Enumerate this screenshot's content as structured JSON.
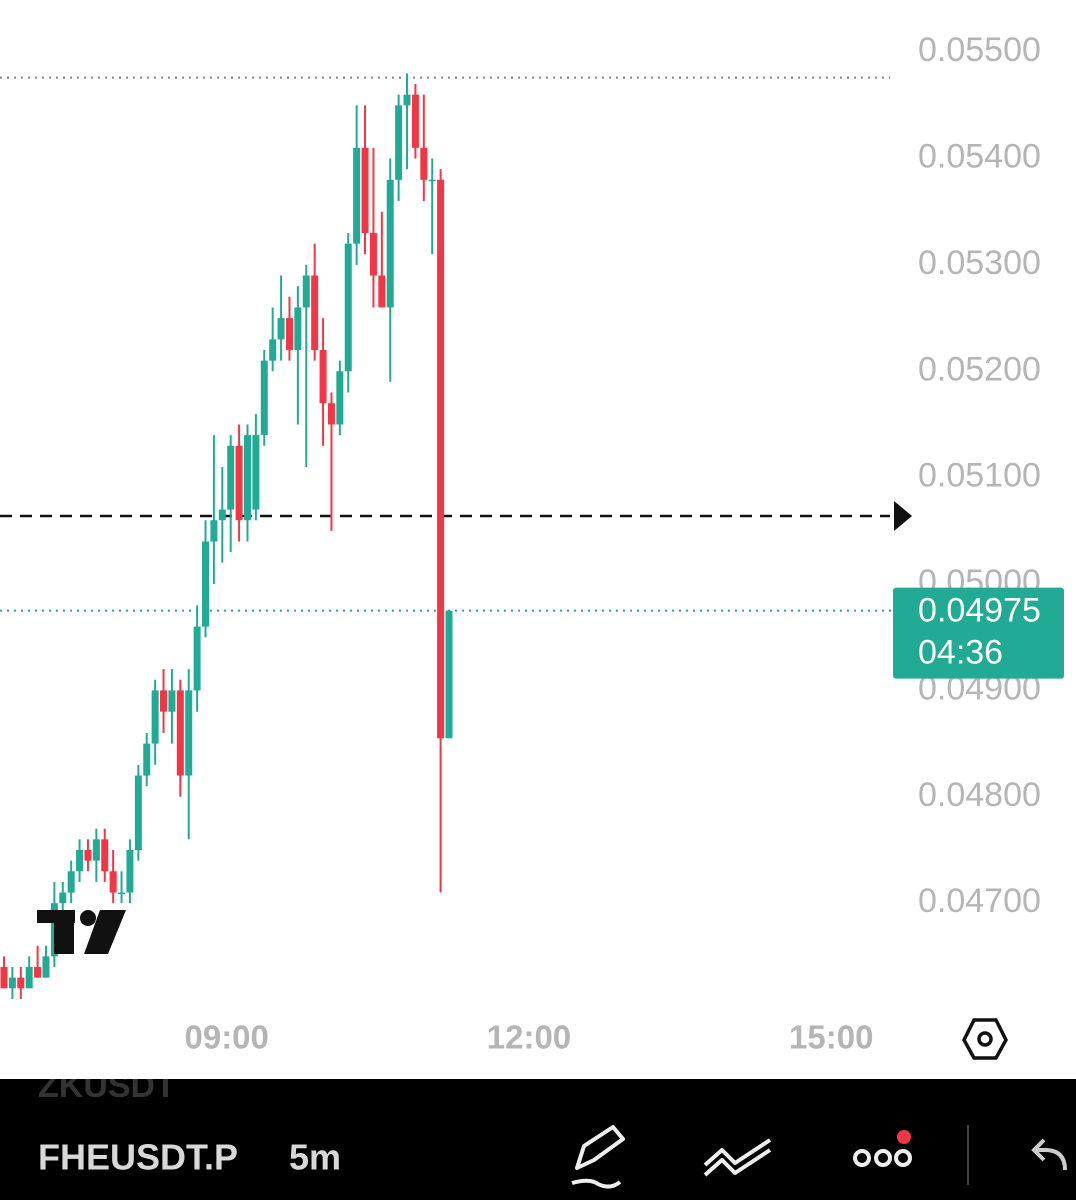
{
  "chart_data": {
    "type": "candlestick",
    "x": [
      "06:45",
      "06:50",
      "06:55",
      "07:00",
      "07:05",
      "07:10",
      "07:15",
      "07:20",
      "07:25",
      "07:30",
      "07:35",
      "07:40",
      "07:45",
      "07:50",
      "07:55",
      "08:00",
      "08:05",
      "08:10",
      "08:15",
      "08:20",
      "08:25",
      "08:30",
      "08:35",
      "08:40",
      "08:45",
      "08:50",
      "08:55",
      "09:00",
      "09:05",
      "09:10",
      "09:15",
      "09:20",
      "09:25",
      "09:30",
      "09:35",
      "09:40",
      "09:45",
      "09:50",
      "09:55",
      "10:00",
      "10:05",
      "10:10",
      "10:15",
      "10:20",
      "10:25",
      "10:30",
      "10:35",
      "10:40",
      "10:45",
      "10:50",
      "10:55",
      "11:00",
      "11:05",
      "11:10"
    ],
    "open": [
      0.0464,
      0.0462,
      0.0463,
      0.0462,
      0.0464,
      0.0463,
      0.0465,
      0.047,
      0.0471,
      0.0473,
      0.0475,
      0.0474,
      0.0476,
      0.0473,
      0.0471,
      0.0471,
      0.0475,
      0.0482,
      0.0485,
      0.049,
      0.0488,
      0.049,
      0.0482,
      0.049,
      0.0496,
      0.0504,
      0.0506,
      0.0507,
      0.0513,
      0.0506,
      0.0507,
      0.0514,
      0.0521,
      0.0523,
      0.0525,
      0.0522,
      0.0526,
      0.0529,
      0.0522,
      0.0517,
      0.0515,
      0.052,
      0.0532,
      0.0541,
      0.0533,
      0.0529,
      0.0526,
      0.0538,
      0.0545,
      0.0546,
      0.0541,
      0.0538,
      0.0538,
      0.04855
    ],
    "high": [
      0.0465,
      0.0464,
      0.0464,
      0.0465,
      0.0466,
      0.0466,
      0.0472,
      0.0472,
      0.0474,
      0.0476,
      0.0476,
      0.0477,
      0.0477,
      0.0475,
      0.0473,
      0.0476,
      0.0483,
      0.0486,
      0.0491,
      0.0492,
      0.0492,
      0.0491,
      0.0492,
      0.0498,
      0.0506,
      0.0514,
      0.0511,
      0.0514,
      0.0515,
      0.0515,
      0.0516,
      0.0522,
      0.0526,
      0.0529,
      0.0527,
      0.0528,
      0.053,
      0.0532,
      0.0525,
      0.0518,
      0.0521,
      0.0533,
      0.0545,
      0.0545,
      0.0541,
      0.0535,
      0.054,
      0.0546,
      0.0548,
      0.0547,
      0.0546,
      0.054,
      0.0539,
      0.04975
    ],
    "low": [
      0.0462,
      0.0461,
      0.0461,
      0.0462,
      0.0463,
      0.0463,
      0.0464,
      0.0469,
      0.047,
      0.0472,
      0.0473,
      0.0472,
      0.0472,
      0.047,
      0.047,
      0.047,
      0.0474,
      0.0481,
      0.0483,
      0.0486,
      0.0485,
      0.048,
      0.0476,
      0.0488,
      0.0495,
      0.05,
      0.0502,
      0.0503,
      0.0504,
      0.0504,
      0.0506,
      0.0513,
      0.052,
      0.0521,
      0.0521,
      0.0515,
      0.0511,
      0.0521,
      0.0513,
      0.0505,
      0.0514,
      0.0518,
      0.053,
      0.0531,
      0.0526,
      0.0526,
      0.0519,
      0.0536,
      0.0539,
      0.054,
      0.0536,
      0.0531,
      0.0471,
      0.04855
    ],
    "close": [
      0.0462,
      0.0463,
      0.0462,
      0.0464,
      0.0463,
      0.0465,
      0.047,
      0.0471,
      0.0473,
      0.0475,
      0.0474,
      0.0476,
      0.0473,
      0.0471,
      0.0471,
      0.0475,
      0.0482,
      0.0485,
      0.049,
      0.0488,
      0.049,
      0.0482,
      0.049,
      0.0496,
      0.0504,
      0.0506,
      0.0507,
      0.0513,
      0.0506,
      0.0514,
      0.0514,
      0.0521,
      0.0523,
      0.0525,
      0.0522,
      0.0526,
      0.0529,
      0.0522,
      0.0517,
      0.0515,
      0.052,
      0.0532,
      0.0541,
      0.0533,
      0.0529,
      0.0526,
      0.0538,
      0.0545,
      0.0546,
      0.0541,
      0.0538,
      0.0538,
      0.04855,
      0.04975
    ],
    "up_color": "#22ab94",
    "down_color": "#f23645",
    "xlim": [
      "06:45",
      "15:35"
    ],
    "xticks": [
      "09:00",
      "12:00",
      "15:00"
    ],
    "ylim": [
      0.04609,
      0.05549
    ],
    "yticks": [
      {
        "value": 0.055,
        "label": "0.05500"
      },
      {
        "value": 0.054,
        "label": "0.05400"
      },
      {
        "value": 0.053,
        "label": "0.05300"
      },
      {
        "value": 0.052,
        "label": "0.05200"
      },
      {
        "value": 0.051,
        "label": "0.05100"
      },
      {
        "value": 0.05,
        "label": "0.05000"
      },
      {
        "value": 0.049,
        "label": "0.04900"
      },
      {
        "value": 0.048,
        "label": "0.04800"
      },
      {
        "value": 0.047,
        "label": "0.04700"
      }
    ],
    "high_line": 0.05476,
    "alert_line": 0.05064,
    "last_price": 0.04975,
    "countdown": "04:36"
  },
  "toolbar": {
    "previous_symbol": "ZKUSDT",
    "symbol": "FHEUSDT.P",
    "interval": "5m"
  }
}
